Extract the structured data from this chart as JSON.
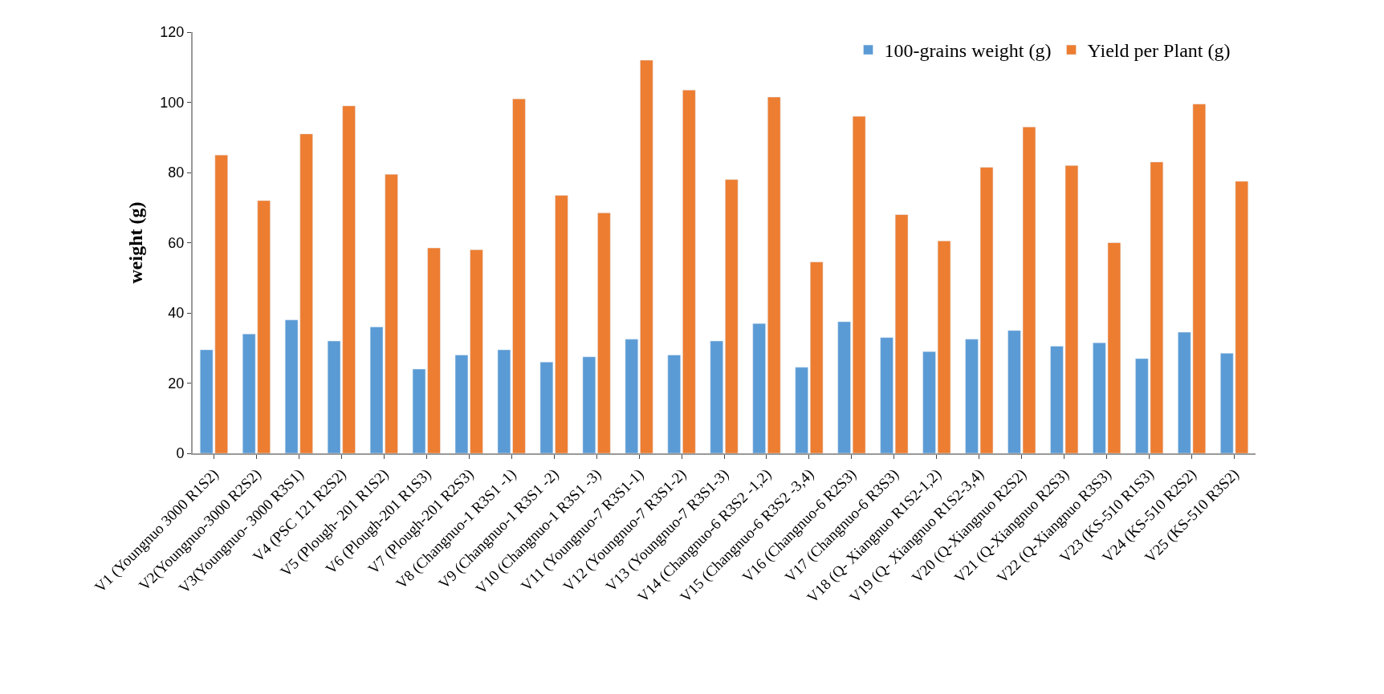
{
  "chart_data": {
    "type": "bar",
    "ylabel": "weight (g)",
    "categories": [
      "V1 (Youngnuo 3000 R1S2)",
      "V2(Youngnuo-3000 R2S2)",
      "V3(Youngnuo- 3000 R3S1)",
      "V4 (PSC 121 R2S2)",
      "V5 (Plough- 201 R1S2)",
      "V6 (Plough-201 R1S3)",
      "V7 (Plough-201 R2S3)",
      "V8 (Changnuo-1 R3S1 -1)",
      "V9 (Changnuo-1 R3S1 -2)",
      "V10 (Changnuo-1 R3S1 -3)",
      "V11 (Youngnuo-7 R3S1-1)",
      "V12 (Youngnuo-7 R3S1-2)",
      "V13 (Youngnuo-7 R3S1-3)",
      "V14 (Changnuo-6 R3S2 -1,2)",
      "V15 (Changnuo-6 R3S2 -3,4)",
      "V16 (Changnuo-6 R2S3)",
      "V17 (Changnuo-6 R3S3)",
      "V18 (Q- Xiangnuo R1S2-1,2)",
      "V19 (Q- Xiangnuo R1S2-3,4)",
      "V20 (Q-Xiangnuo R2S2)",
      "V21 (Q-Xiangnuo R2S3)",
      "V22 (Q-Xiangnuo R3S3)",
      "V23 (KS-510 R1S3)",
      "V24 (KS-510 R2S2)",
      "V25 (KS-510 R3S2)"
    ],
    "series": [
      {
        "name": "100-grains weight (g)",
        "color": "#5b9bd5",
        "values": [
          29.5,
          34,
          38,
          32,
          36,
          24,
          28,
          29.5,
          26,
          27.5,
          32.5,
          28,
          32,
          37,
          24.5,
          37.5,
          33,
          29,
          32.5,
          35,
          30.5,
          31.5,
          27,
          34.5,
          28.5
        ]
      },
      {
        "name": "Yield per Plant (g)",
        "color": "#ed7d31",
        "values": [
          85,
          72,
          91,
          99,
          79.5,
          58.5,
          58,
          101,
          73.5,
          68.5,
          112,
          103.5,
          78,
          101.5,
          54.5,
          96,
          68,
          60.5,
          81.5,
          93,
          82,
          60,
          83,
          99.5,
          77.5
        ]
      }
    ],
    "ylim": [
      0,
      120
    ],
    "yticks": [
      0,
      20,
      40,
      60,
      80,
      100,
      120
    ],
    "legend": "top right"
  }
}
